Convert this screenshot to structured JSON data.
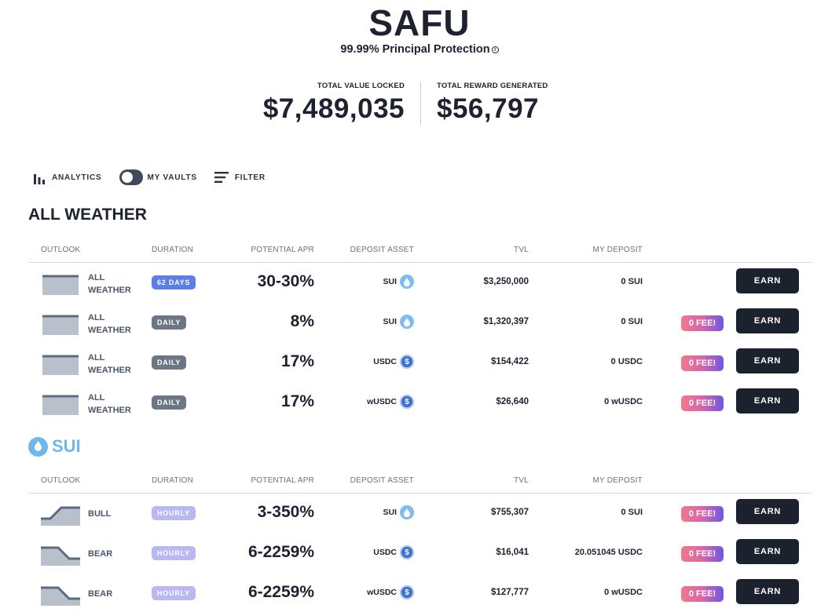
{
  "header": {
    "brand": "SAFU",
    "tagline": "99.99% Principal Protection",
    "info_glyph": "i"
  },
  "stats": {
    "tvl_label": "TOTAL VALUE LOCKED",
    "tvl_value": "$7,489,035",
    "reward_label": "TOTAL REWARD GENERATED",
    "reward_value": "$56,797"
  },
  "controls": {
    "analytics": "ANALYTICS",
    "my_vaults": "MY VAULTS",
    "my_vaults_on": false,
    "filter": "FILTER"
  },
  "columns": {
    "outlook": "OUTLOOK",
    "duration": "DURATION",
    "apr": "POTENTIAL APR",
    "asset": "DEPOSIT ASSET",
    "tvl": "TVL",
    "deposit": "MY DEPOSIT"
  },
  "sections": [
    {
      "title": "ALL WEATHER",
      "rows": [
        {
          "outlook": "flat",
          "outlook_line1": "ALL",
          "outlook_line2": "WEATHER",
          "duration": "62 DAYS",
          "duration_style": "blue",
          "apr": "30-30%",
          "asset": "SUI",
          "asset_icon": "sui-icon",
          "tvl": "$3,250,000",
          "deposit": "0 SUI",
          "fee": "",
          "earn": "EARN"
        },
        {
          "outlook": "flat",
          "outlook_line1": "ALL",
          "outlook_line2": "WEATHER",
          "duration": "DAILY",
          "duration_style": "gray",
          "apr": "8%",
          "asset": "SUI",
          "asset_icon": "sui-icon",
          "tvl": "$1,320,397",
          "deposit": "0 SUI",
          "fee": "0 FEE!",
          "earn": "EARN"
        },
        {
          "outlook": "flat",
          "outlook_line1": "ALL",
          "outlook_line2": "WEATHER",
          "duration": "DAILY",
          "duration_style": "gray",
          "apr": "17%",
          "asset": "USDC",
          "asset_icon": "usdc-icon",
          "tvl": "$154,422",
          "deposit": "0 USDC",
          "fee": "0 FEE!",
          "earn": "EARN"
        },
        {
          "outlook": "flat",
          "outlook_line1": "ALL",
          "outlook_line2": "WEATHER",
          "duration": "DAILY",
          "duration_style": "gray",
          "apr": "17%",
          "asset": "wUSDC",
          "asset_icon": "usdc-icon",
          "tvl": "$26,640",
          "deposit": "0 wUSDC",
          "fee": "0 FEE!",
          "earn": "EARN"
        }
      ]
    },
    {
      "title": "SUI",
      "rows": [
        {
          "outlook": "bull",
          "outlook_line1": "BULL",
          "outlook_line2": "",
          "duration": "HOURLY",
          "duration_style": "light",
          "apr": "3-350%",
          "asset": "SUI",
          "asset_icon": "sui-icon",
          "tvl": "$755,307",
          "deposit": "0 SUI",
          "fee": "0 FEE!",
          "earn": "EARN"
        },
        {
          "outlook": "bear",
          "outlook_line1": "BEAR",
          "outlook_line2": "",
          "duration": "HOURLY",
          "duration_style": "light",
          "apr": "6-2259%",
          "asset": "USDC",
          "asset_icon": "usdc-icon",
          "tvl": "$16,041",
          "deposit": "20.051045 USDC",
          "fee": "0 FEE!",
          "earn": "EARN"
        },
        {
          "outlook": "bear",
          "outlook_line1": "BEAR",
          "outlook_line2": "",
          "duration": "HOURLY",
          "duration_style": "light",
          "apr": "6-2259%",
          "asset": "wUSDC",
          "asset_icon": "usdc-icon",
          "tvl": "$127,777",
          "deposit": "0 wUSDC",
          "fee": "0 FEE!",
          "earn": "EARN"
        }
      ]
    }
  ],
  "colors": {
    "primary_dark": "#1c222d",
    "sui_blue": "#6fb6ec",
    "duration_blue": "#5b7ee8",
    "duration_gray": "#6d7684",
    "duration_light": "#b9b8f2"
  }
}
